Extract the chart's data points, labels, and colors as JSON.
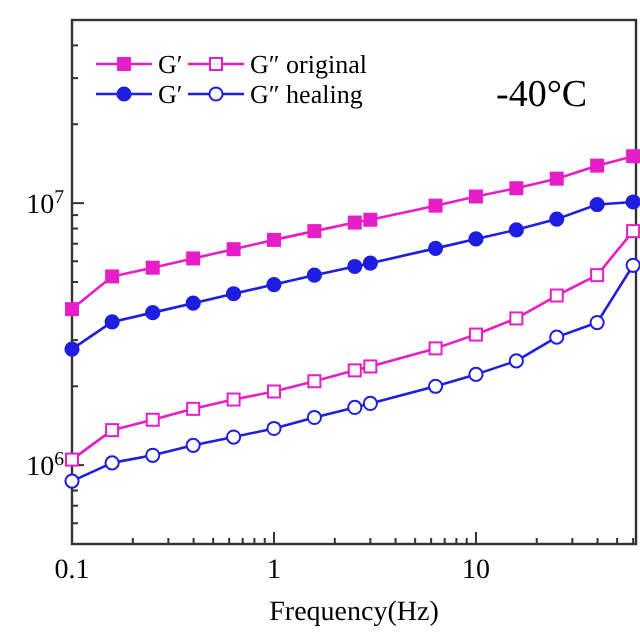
{
  "chart_data": {
    "type": "line",
    "xlabel": "Frequency(Hz)",
    "log": "xy",
    "legend": "top left",
    "annotations": [
      "-40°C"
    ],
    "x": [
      0.1,
      0.158,
      0.251,
      0.398,
      0.631,
      1,
      1.585,
      2.512,
      3,
      6.31,
      10,
      15.85,
      25.12,
      39.81,
      60
    ],
    "xlim": [
      0.1,
      62
    ],
    "ylim": [
      500000,
      50000000
    ],
    "xticks": [
      0.1,
      {
        "value": 0.2,
        "label": null
      },
      {
        "value": 0.3,
        "label": null
      },
      {
        "value": 0.4,
        "label": null
      },
      {
        "value": 0.5,
        "label": null
      },
      {
        "value": 0.6,
        "label": null
      },
      {
        "value": 0.7,
        "label": null
      },
      {
        "value": 0.8,
        "label": null
      },
      {
        "value": 0.9,
        "label": null
      },
      1,
      {
        "value": 2,
        "label": null
      },
      {
        "value": 3,
        "label": null
      },
      {
        "value": 4,
        "label": null
      },
      {
        "value": 5,
        "label": null
      },
      {
        "value": 6,
        "label": null
      },
      {
        "value": 7,
        "label": null
      },
      {
        "value": 8,
        "label": null
      },
      {
        "value": 9,
        "label": null
      },
      10,
      {
        "value": 20,
        "label": null
      },
      {
        "value": 30,
        "label": null
      },
      {
        "value": 40,
        "label": null
      },
      {
        "value": 50,
        "label": null
      },
      {
        "value": 60,
        "label": null
      }
    ],
    "yticks": [
      {
        "value": 600000,
        "label": null
      },
      {
        "value": 700000,
        "label": null
      },
      {
        "value": 800000,
        "label": null
      },
      {
        "value": 900000,
        "label": null
      },
      {
        "value": 1000000,
        "label": "10$^{6}$"
      },
      {
        "value": 2000000,
        "label": null
      },
      {
        "value": 3000000,
        "label": null
      },
      {
        "value": 4000000,
        "label": null
      },
      {
        "value": 5000000,
        "label": null
      },
      {
        "value": 6000000,
        "label": null
      },
      {
        "value": 7000000,
        "label": null
      },
      {
        "value": 8000000,
        "label": null
      },
      {
        "value": 9000000,
        "label": null
      },
      {
        "value": 10000000,
        "label": "10$^{7}$"
      },
      {
        "value": 20000000,
        "label": null
      },
      {
        "value": 30000000,
        "label": null
      },
      {
        "value": 40000000,
        "label": null
      }
    ],
    "series": [
      {
        "name": "G′",
        "color": "#e61ec8",
        "marker": "square",
        "values": [
          3940000,
          5250000,
          5670000,
          6150000,
          6670000,
          7240000,
          7820000,
          8430000,
          8640000,
          9780000,
          10600000,
          11400000,
          12400000,
          13900000,
          15100000
        ]
      },
      {
        "name": "G″ original",
        "color": "#e61ec8",
        "marker": "square-open",
        "values": [
          1050000,
          1360000,
          1490000,
          1640000,
          1780000,
          1910000,
          2090000,
          2300000,
          2380000,
          2790000,
          3150000,
          3630000,
          4440000,
          5310000,
          7820000
        ]
      },
      {
        "name": "G′",
        "color": "#1e1ee0",
        "marker": "circle",
        "values": [
          2770000,
          3520000,
          3820000,
          4150000,
          4510000,
          4890000,
          5310000,
          5730000,
          5900000,
          6720000,
          7300000,
          7910000,
          8690000,
          9880000,
          10100000
        ]
      },
      {
        "name": "G″ healing",
        "color": "#1e1ee0",
        "marker": "circle-open",
        "values": [
          869000,
          1020000,
          1090000,
          1190000,
          1280000,
          1380000,
          1520000,
          1660000,
          1720000,
          2000000,
          2220000,
          2500000,
          3080000,
          3500000,
          5790000
        ]
      }
    ]
  }
}
